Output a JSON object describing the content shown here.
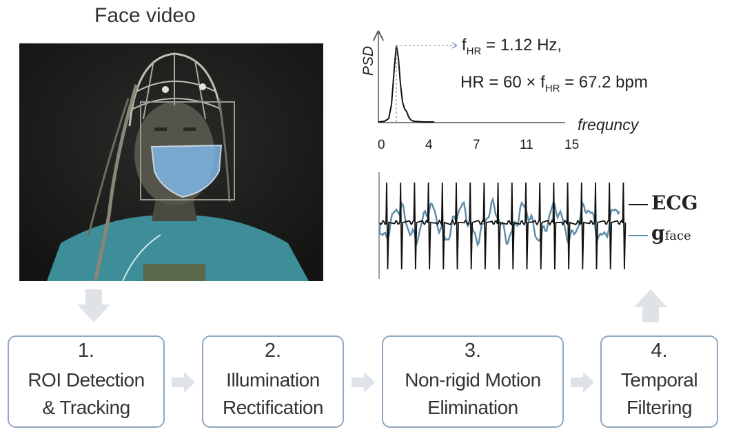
{
  "video": {
    "title": "Face video"
  },
  "psd": {
    "ylabel": "PSD",
    "xlabel": "frequncy",
    "ticks": [
      "0",
      "4",
      "7",
      "11",
      "15"
    ],
    "fhr_line": {
      "prefix": "f",
      "sub": "HR",
      "suffix": " = 1.12 Hz,"
    },
    "hr_line": {
      "prefix": "HR = 60 × f",
      "sub": "HR",
      "suffix": " = 67.2 bpm"
    }
  },
  "legend": {
    "ecg": "ECG",
    "gface_main": "g",
    "gface_sub": "face",
    "ecg_color": "#111111",
    "gface_color": "#5f8fa8"
  },
  "steps": [
    {
      "num": "1.",
      "line1": "ROI Detection",
      "line2": "& Tracking"
    },
    {
      "num": "2.",
      "line1": "Illumination",
      "line2": "Rectification"
    },
    {
      "num": "3.",
      "line1": "Non-rigid Motion",
      "line2": "Elimination"
    },
    {
      "num": "4.",
      "line1": "Temporal",
      "line2": "Filtering"
    }
  ],
  "colors": {
    "step_border": "#8fa7bf",
    "arrow": "#dfe3e7",
    "roi_fill": "#7fb7e6"
  }
}
